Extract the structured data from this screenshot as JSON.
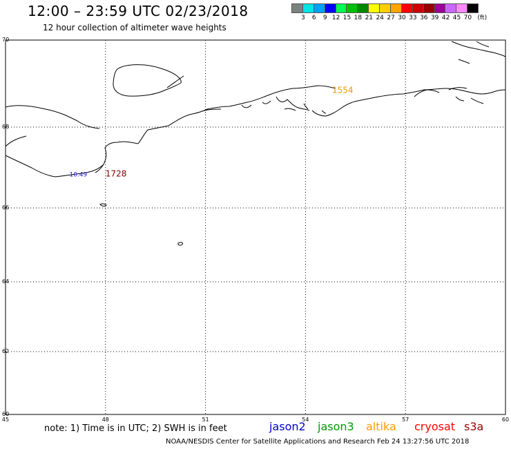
{
  "header": {
    "title": "12:00 – 23:59 UTC 02/23/2018",
    "subtitle": "12 hour collection of altimeter wave heights"
  },
  "legend": {
    "unit": "(ft)",
    "bins": [
      {
        "label": "",
        "color": "#808080"
      },
      {
        "label": "3",
        "color": "#00e5e5"
      },
      {
        "label": "6",
        "color": "#00a0ff"
      },
      {
        "label": "9",
        "color": "#0000ff"
      },
      {
        "label": "12",
        "color": "#00ff55"
      },
      {
        "label": "15",
        "color": "#00c000"
      },
      {
        "label": "18",
        "color": "#008800"
      },
      {
        "label": "21",
        "color": "#ffff00"
      },
      {
        "label": "24",
        "color": "#ffd000"
      },
      {
        "label": "27",
        "color": "#ffa500"
      },
      {
        "label": "30",
        "color": "#ff0000"
      },
      {
        "label": "33",
        "color": "#cc0000"
      },
      {
        "label": "36",
        "color": "#990000"
      },
      {
        "label": "39",
        "color": "#990099"
      },
      {
        "label": "42",
        "color": "#cc66ff"
      },
      {
        "label": "45",
        "color": "#ff88ff"
      },
      {
        "label": "70",
        "color": "#000000"
      }
    ]
  },
  "map": {
    "lon_range": [
      45,
      60
    ],
    "lat_range": [
      60,
      70
    ],
    "lon_ticks": [
      "45",
      "48",
      "51",
      "54",
      "57",
      "60"
    ],
    "lat_ticks": [
      "70",
      "68",
      "66",
      "64",
      "62",
      "60"
    ],
    "grid": "dotted",
    "observations": [
      {
        "time": "1554",
        "lon": 54.8,
        "lat": 68.85,
        "color": "#e69a00"
      },
      {
        "time": "1728",
        "lon": 48.0,
        "lat": 66.85,
        "color": "#7a0000"
      },
      {
        "value": "10.49",
        "lon": 47.45,
        "lat": 66.85,
        "color": "#2020c0"
      }
    ]
  },
  "footer": {
    "note": "note: 1) Time is in UTC; 2) SWH is in feet",
    "missions": [
      {
        "name": "jason2",
        "color": "#0000cc"
      },
      {
        "name": "jason3",
        "color": "#009900"
      },
      {
        "name": "altika",
        "color": "#ff9900"
      },
      {
        "name": "cryosat",
        "color": "#ff0000"
      },
      {
        "name": "s3a",
        "color": "#990000"
      }
    ],
    "credit": "NOAA/NESDIS Center for Satellite Applications and Research    Feb 24 13:27:56 UTC 2018"
  }
}
